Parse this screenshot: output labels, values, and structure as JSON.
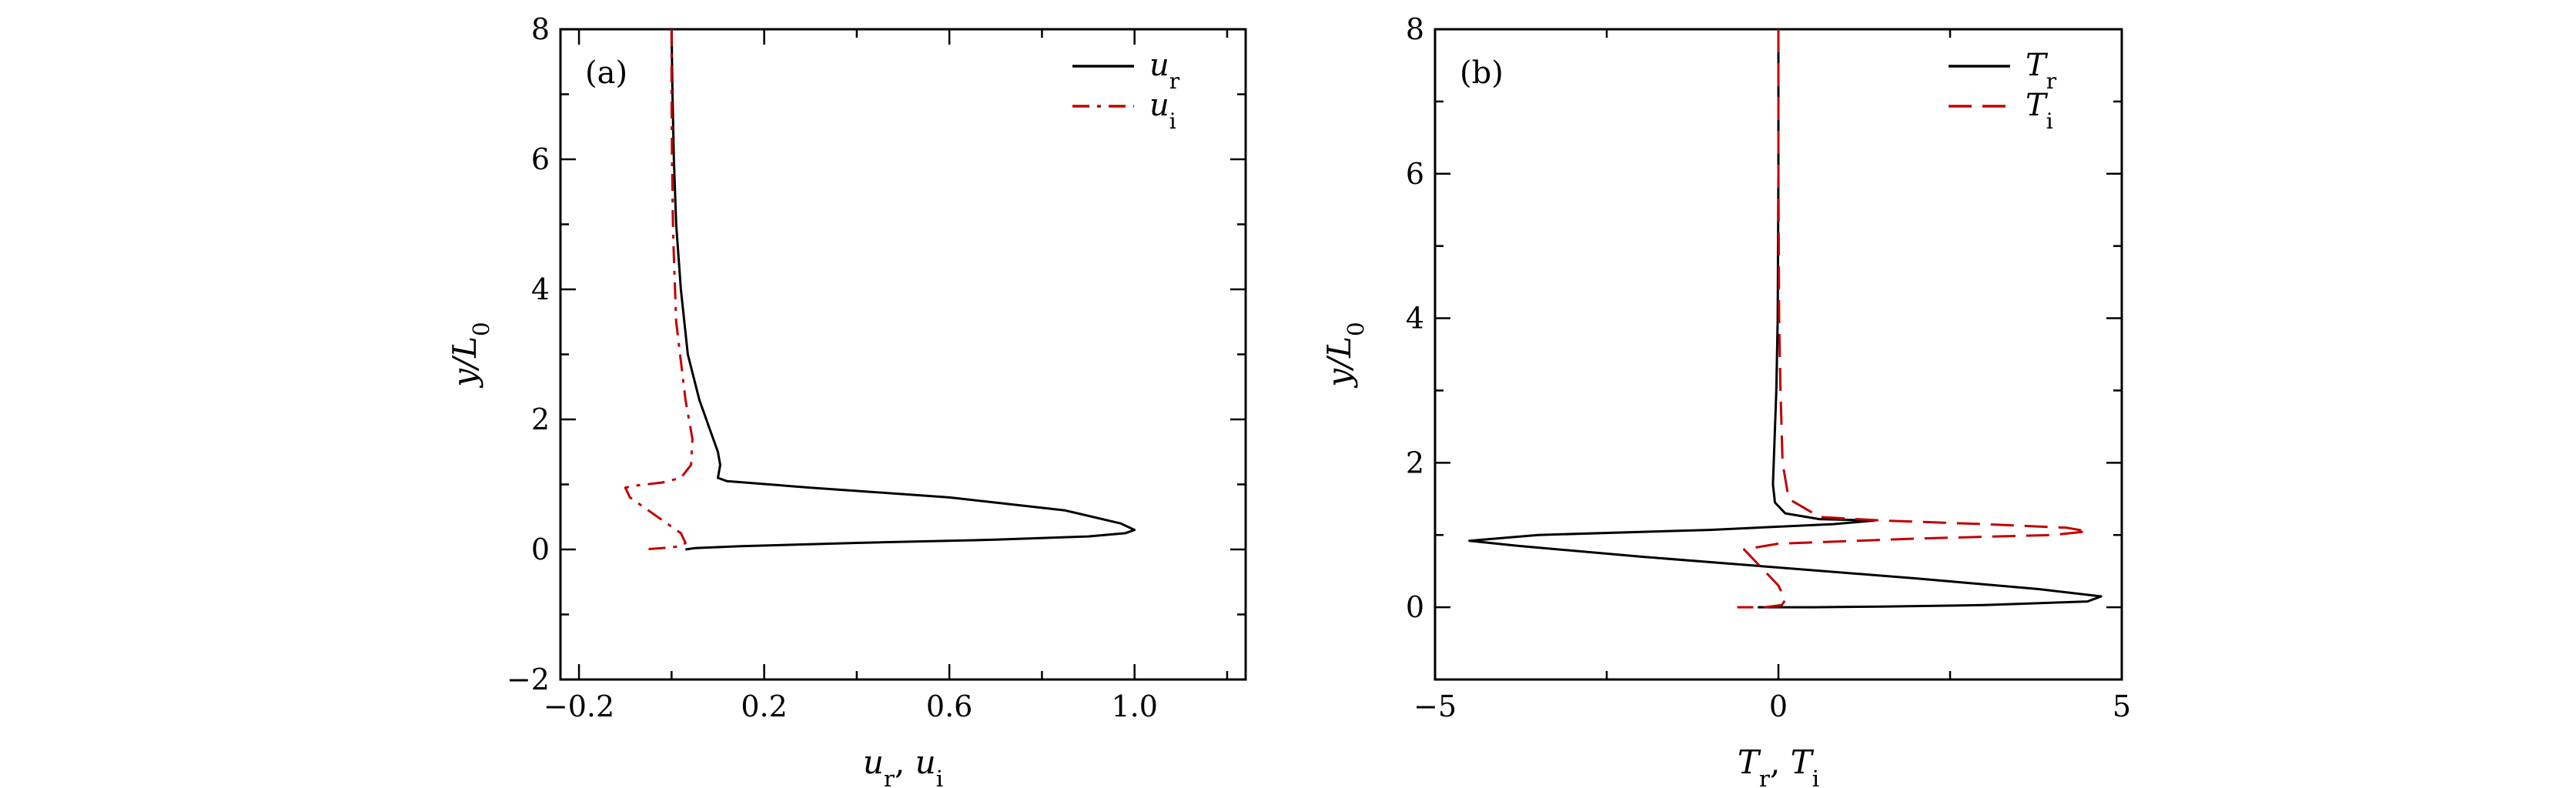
{
  "chart_data": [
    {
      "type": "line",
      "panel_label": "(a)",
      "xlabel": "u_r, u_i",
      "ylabel": "y/L_0",
      "xlim": [
        -0.24,
        1.24
      ],
      "ylim": [
        -2,
        8
      ],
      "xticks": [
        -0.2,
        0.2,
        0.6,
        1.0
      ],
      "xtick_labels": [
        "−0.2",
        "0.2",
        "0.6",
        "1.0"
      ],
      "yticks": [
        -2,
        0,
        2,
        4,
        6,
        8
      ],
      "ytick_labels": [
        "−2",
        "0",
        "2",
        "4",
        "6",
        "8"
      ],
      "grid": false,
      "legend": "top-right",
      "series": [
        {
          "name": "u_r",
          "color": "#000000",
          "style": "solid",
          "x": [
            0.0,
            0.002,
            0.005,
            0.01,
            0.02,
            0.035,
            0.06,
            0.085,
            0.1,
            0.105,
            0.1,
            0.12,
            0.3,
            0.6,
            0.85,
            0.97,
            1.0,
            0.98,
            0.9,
            0.7,
            0.4,
            0.15,
            0.05,
            0.03
          ],
          "y": [
            8.0,
            7.0,
            6.0,
            5.0,
            4.0,
            3.0,
            2.3,
            1.8,
            1.5,
            1.3,
            1.1,
            1.05,
            0.95,
            0.8,
            0.6,
            0.4,
            0.3,
            0.25,
            0.2,
            0.15,
            0.1,
            0.05,
            0.02,
            0.0
          ]
        },
        {
          "name": "u_i",
          "color": "#c00000",
          "style": "dashdot",
          "x": [
            0.0,
            0.0,
            0.001,
            0.003,
            0.005,
            0.01,
            0.03,
            0.045,
            0.042,
            0.02,
            -0.02,
            -0.08,
            -0.1,
            -0.09,
            -0.03,
            0.02,
            0.03,
            0.02,
            -0.02,
            -0.06
          ],
          "y": [
            8.0,
            7.0,
            6.0,
            5.0,
            4.5,
            3.5,
            2.3,
            1.7,
            1.3,
            1.1,
            1.03,
            0.98,
            0.95,
            0.8,
            0.5,
            0.25,
            0.1,
            0.05,
            0.02,
            0.0
          ]
        }
      ]
    },
    {
      "type": "line",
      "panel_label": "(b)",
      "xlabel": "T_r, T_i",
      "ylabel": "y/L_0",
      "xlim": [
        -5,
        5
      ],
      "ylim": [
        -1,
        8
      ],
      "xticks": [
        -5,
        0,
        5
      ],
      "xtick_labels": [
        "−5",
        "0",
        "5"
      ],
      "yticks": [
        0,
        2,
        4,
        6,
        8
      ],
      "ytick_labels": [
        "0",
        "2",
        "4",
        "6",
        "8"
      ],
      "grid": false,
      "legend": "top-right",
      "series": [
        {
          "name": "T_r",
          "color": "#000000",
          "style": "solid",
          "x": [
            0.0,
            0.0,
            -0.01,
            -0.03,
            -0.06,
            -0.08,
            -0.05,
            0.1,
            0.6,
            1.4,
            0.8,
            -1.0,
            -3.5,
            -4.5,
            -3.8,
            -2.0,
            0.0,
            2.0,
            3.8,
            4.7,
            4.5,
            3.0,
            1.5,
            0.5,
            0.0,
            -0.3
          ],
          "y": [
            8.0,
            6.0,
            4.0,
            3.0,
            2.2,
            1.7,
            1.45,
            1.3,
            1.22,
            1.2,
            1.15,
            1.07,
            1.0,
            0.92,
            0.85,
            0.7,
            0.55,
            0.4,
            0.25,
            0.15,
            0.08,
            0.03,
            0.01,
            0.0,
            0.0,
            0.0
          ]
        },
        {
          "name": "T_i",
          "color": "#c00000",
          "style": "dashed",
          "x": [
            0.0,
            0.0,
            0.01,
            0.03,
            0.06,
            0.15,
            0.6,
            1.5,
            3.0,
            4.2,
            4.5,
            4.0,
            2.0,
            0.0,
            -0.5,
            -0.4,
            -0.2,
            0.0,
            0.1,
            0.05,
            -0.2,
            -0.6
          ],
          "y": [
            8.0,
            6.0,
            4.0,
            3.0,
            2.0,
            1.5,
            1.25,
            1.2,
            1.15,
            1.1,
            1.05,
            1.0,
            0.95,
            0.88,
            0.8,
            0.7,
            0.5,
            0.3,
            0.1,
            0.03,
            0.0,
            0.0
          ]
        }
      ]
    }
  ]
}
